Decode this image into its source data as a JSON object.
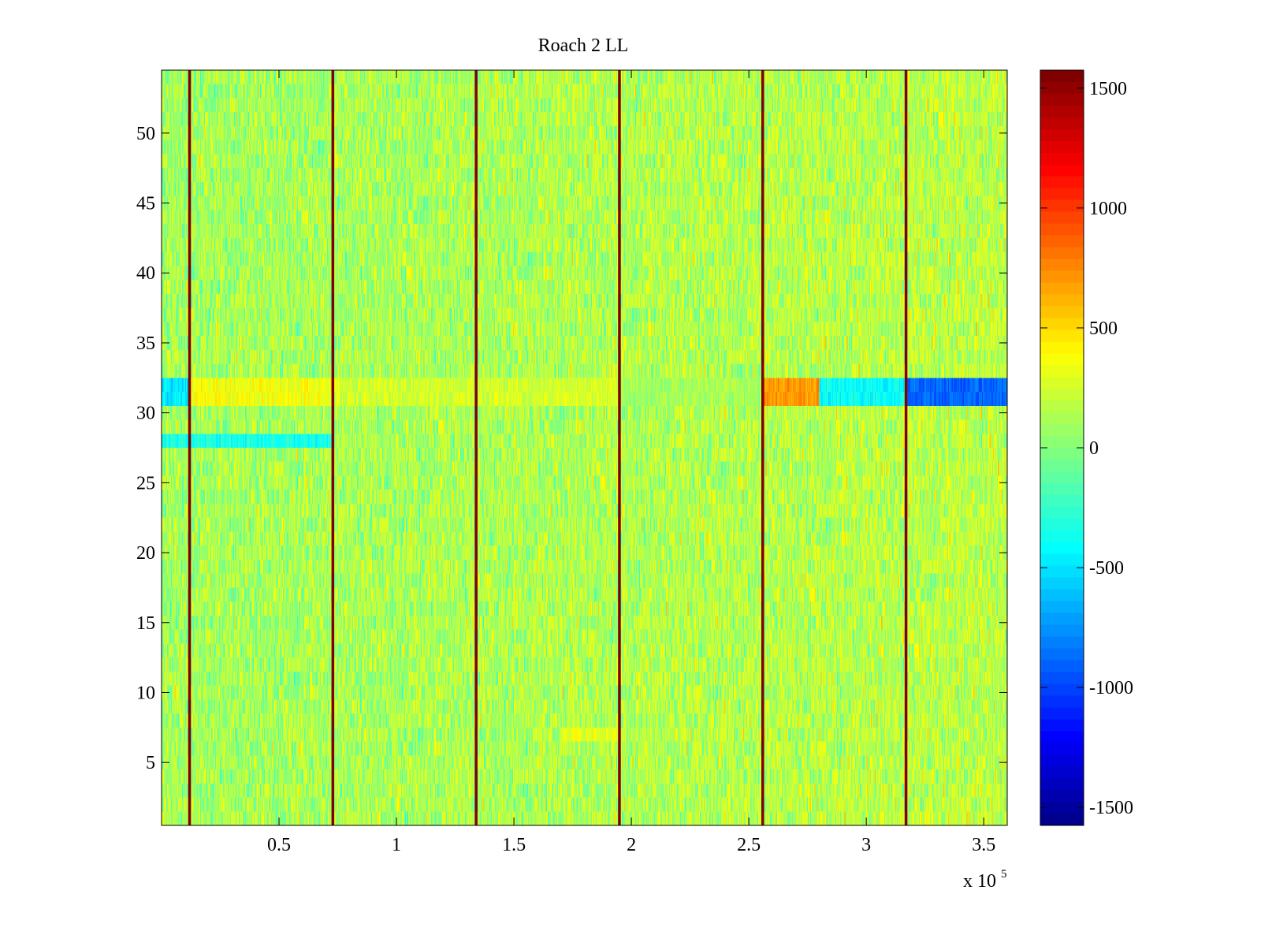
{
  "chart_data": {
    "type": "heatmap",
    "title": "Roach 2 LL",
    "xlabel": "",
    "ylabel": "",
    "x_exponent_base": "x 10",
    "x_exponent_power": "5",
    "xlim": [
      0,
      3.6
    ],
    "ylim": [
      0.5,
      54.5
    ],
    "x_ticks": [
      0.5,
      1,
      1.5,
      2,
      2.5,
      3,
      3.5
    ],
    "x_tick_labels": [
      "0.5",
      "1",
      "1.5",
      "2",
      "2.5",
      "3",
      "3.5"
    ],
    "y_ticks": [
      5,
      10,
      15,
      20,
      25,
      30,
      35,
      40,
      45,
      50
    ],
    "y_tick_labels": [
      "5",
      "10",
      "15",
      "20",
      "25",
      "30",
      "35",
      "40",
      "45",
      "50"
    ],
    "rows": 54,
    "color_range": [
      -1575,
      1575
    ],
    "colorbar_ticks": [
      1500,
      1000,
      500,
      0,
      -500,
      -1000,
      -1500
    ],
    "colorbar_tick_labels": [
      "1500",
      "1000",
      "500",
      "0",
      "-500",
      "-1000",
      "-1500"
    ],
    "colormap": "jet",
    "colormap_stops": [
      "#00008f",
      "#0000ff",
      "#00ffff",
      "#ffff00",
      "#ff0000",
      "#800000"
    ],
    "base_value": 100,
    "noise_amplitude": 300,
    "vertical_spike_lines": [
      0.12,
      0.73,
      1.34,
      1.95,
      2.56,
      3.17
    ],
    "spike_value": 1575,
    "row_offsets": [
      {
        "rows": [
          31,
          32
        ],
        "x_range": [
          0,
          0.12
        ],
        "value": -500
      },
      {
        "rows": [
          31,
          32
        ],
        "x_range": [
          0.12,
          0.73
        ],
        "value": 350
      },
      {
        "rows": [
          31,
          32
        ],
        "x_range": [
          0.73,
          1.95
        ],
        "value": 250
      },
      {
        "rows": [
          31,
          32
        ],
        "x_range": [
          1.95,
          2.56
        ],
        "value": 100
      },
      {
        "rows": [
          31,
          32
        ],
        "x_range": [
          2.56,
          2.8
        ],
        "value": 700
      },
      {
        "rows": [
          31,
          32
        ],
        "x_range": [
          2.8,
          3.17
        ],
        "value": -400
      },
      {
        "rows": [
          31,
          32
        ],
        "x_range": [
          3.17,
          3.6
        ],
        "value": -900
      },
      {
        "rows": [
          28
        ],
        "x_range": [
          0,
          0.73
        ],
        "value": -350
      },
      {
        "rows": [
          7
        ],
        "x_range": [
          1.7,
          1.95
        ],
        "value": 300
      }
    ]
  }
}
